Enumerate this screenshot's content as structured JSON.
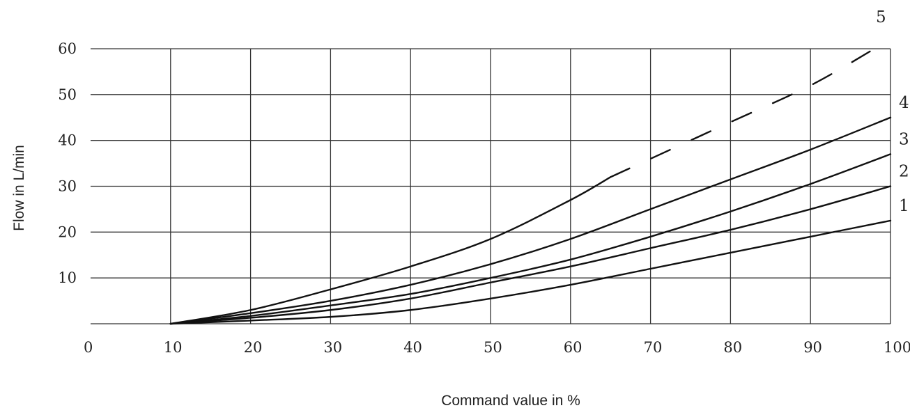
{
  "chart_data": {
    "type": "line",
    "title": "",
    "xlabel": "Command value in %",
    "ylabel": "Flow in L/min",
    "xlim": [
      0,
      100
    ],
    "ylim": [
      0,
      60
    ],
    "x_ticks": [
      "0",
      "10",
      "20",
      "30",
      "40",
      "50",
      "60",
      "70",
      "80",
      "90",
      "100"
    ],
    "y_ticks": [
      "10",
      "20",
      "30",
      "40",
      "50",
      "60"
    ],
    "grid": true,
    "legend": "none",
    "series": [
      {
        "name": "1",
        "style": "solid",
        "x": [
          10,
          20,
          30,
          40,
          50,
          60,
          70,
          80,
          90,
          100
        ],
        "y": [
          0,
          0.7,
          1.5,
          3,
          5.5,
          8.5,
          12,
          15.5,
          19,
          22.5
        ]
      },
      {
        "name": "2",
        "style": "solid",
        "x": [
          10,
          20,
          30,
          40,
          50,
          60,
          70,
          80,
          90,
          100
        ],
        "y": [
          0,
          1.3,
          3,
          5.5,
          9,
          12.5,
          16.5,
          20.5,
          25,
          30
        ]
      },
      {
        "name": "3",
        "style": "solid",
        "x": [
          10,
          20,
          30,
          40,
          50,
          60,
          70,
          80,
          90,
          100
        ],
        "y": [
          0,
          1.7,
          4,
          6.5,
          10,
          14,
          19,
          24.5,
          30.5,
          37
        ]
      },
      {
        "name": "4",
        "style": "solid",
        "x": [
          10,
          20,
          30,
          40,
          50,
          60,
          70,
          80,
          90,
          100
        ],
        "y": [
          0,
          2.3,
          5,
          8.5,
          13,
          18.5,
          25,
          31.5,
          38,
          45
        ]
      },
      {
        "name": "5",
        "style": "solid",
        "x": [
          10,
          20,
          30,
          40,
          50,
          60,
          65
        ],
        "y": [
          0,
          3,
          7.5,
          12.5,
          18.5,
          27,
          32
        ]
      },
      {
        "name": "5",
        "style": "dashed",
        "x": [
          65,
          70,
          80,
          90,
          98
        ],
        "y": [
          32,
          36,
          44,
          52,
          60
        ]
      }
    ]
  }
}
